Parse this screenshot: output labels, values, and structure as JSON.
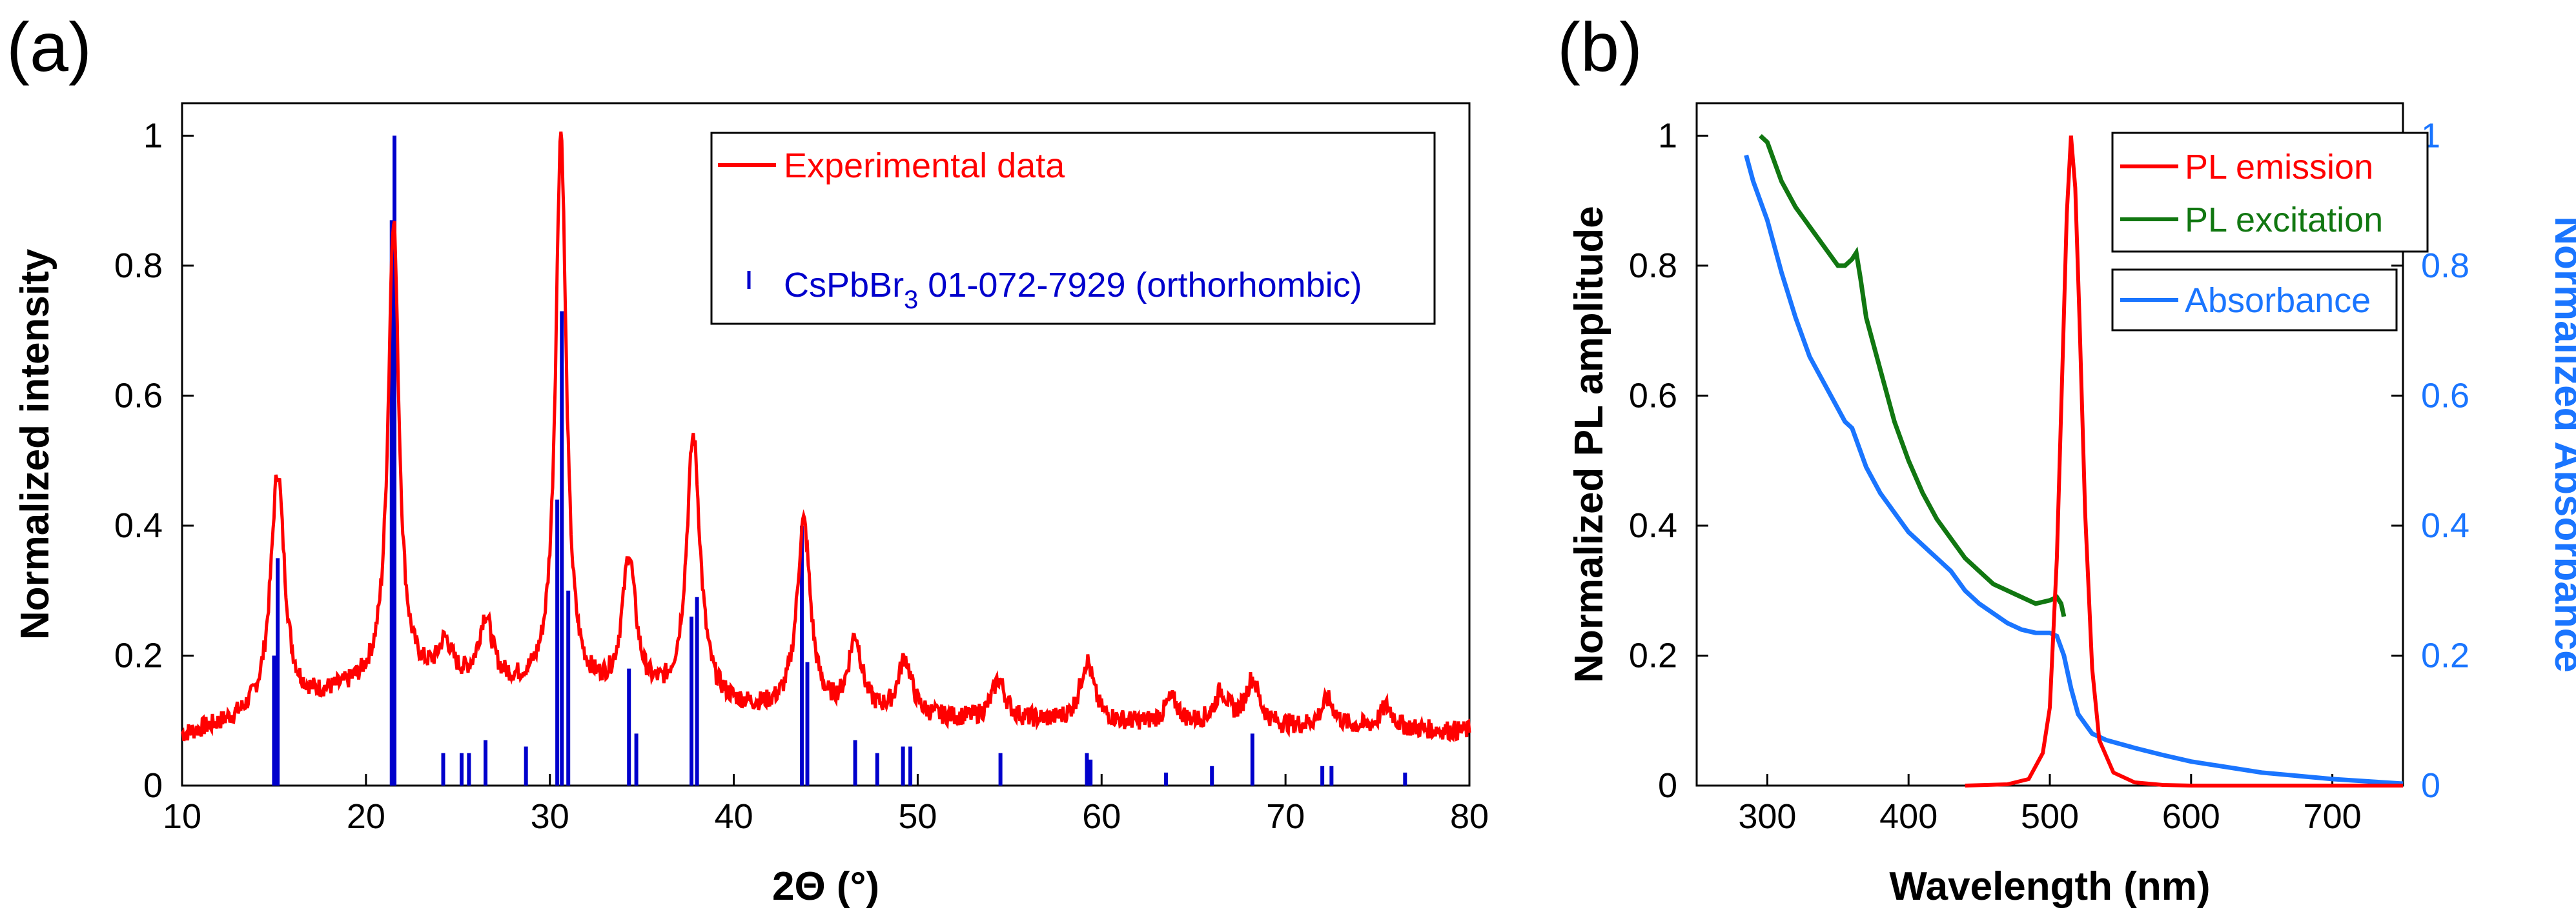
{
  "chart_data": [
    {
      "panel_label": "(a)",
      "type": "line",
      "title": "",
      "xlabel": "2Θ (°)",
      "ylabel": "Normalized intensity",
      "xlim": [
        10,
        80
      ],
      "ylim": [
        0,
        1.05
      ],
      "x_ticks": [
        10,
        20,
        30,
        40,
        50,
        60,
        70,
        80
      ],
      "y_ticks": [
        0,
        0.2,
        0.4,
        0.6,
        0.8,
        1
      ],
      "y_tick_labels": [
        "0",
        "0.2",
        "0.4",
        "0.6",
        "0.8",
        "1"
      ],
      "colors": {
        "experimental": "#ff0000",
        "reference": "#0000cc"
      },
      "legend": {
        "position": "top-right",
        "experimental_label": "Experimental data",
        "reference_label_main": "CsPbBr",
        "reference_label_sub": "3",
        "reference_label_rest": " 01-072-7929 (orthorhombic)"
      },
      "experimental_peaks": [
        {
          "x": 15.2,
          "y": 0.48
        },
        {
          "x": 21.5,
          "y": 0.87
        },
        {
          "x": 24.3,
          "y": 0.21
        },
        {
          "x": 26.5,
          "y": 0.25
        },
        {
          "x": 30.6,
          "y": 1.0
        },
        {
          "x": 34.3,
          "y": 0.34
        },
        {
          "x": 37.8,
          "y": 0.53
        },
        {
          "x": 43.8,
          "y": 0.4
        },
        {
          "x": 46.6,
          "y": 0.22
        },
        {
          "x": 49.3,
          "y": 0.19
        },
        {
          "x": 54.4,
          "y": 0.16
        },
        {
          "x": 59.2,
          "y": 0.19
        },
        {
          "x": 63.8,
          "y": 0.13
        },
        {
          "x": 66.5,
          "y": 0.14
        },
        {
          "x": 68.2,
          "y": 0.16
        },
        {
          "x": 72.3,
          "y": 0.13
        },
        {
          "x": 75.5,
          "y": 0.12
        }
      ],
      "reference_sticks": [
        {
          "x": 15.0,
          "y": 0.2
        },
        {
          "x": 15.2,
          "y": 0.35
        },
        {
          "x": 21.4,
          "y": 0.87
        },
        {
          "x": 21.55,
          "y": 1.0
        },
        {
          "x": 24.2,
          "y": 0.05
        },
        {
          "x": 25.2,
          "y": 0.05
        },
        {
          "x": 25.6,
          "y": 0.05
        },
        {
          "x": 26.5,
          "y": 0.07
        },
        {
          "x": 28.7,
          "y": 0.06
        },
        {
          "x": 30.4,
          "y": 0.44
        },
        {
          "x": 30.65,
          "y": 0.73
        },
        {
          "x": 31.0,
          "y": 0.3
        },
        {
          "x": 34.3,
          "y": 0.18
        },
        {
          "x": 34.7,
          "y": 0.08
        },
        {
          "x": 37.7,
          "y": 0.26
        },
        {
          "x": 38.0,
          "y": 0.29
        },
        {
          "x": 43.7,
          "y": 0.4
        },
        {
          "x": 44.0,
          "y": 0.19
        },
        {
          "x": 46.6,
          "y": 0.07
        },
        {
          "x": 47.8,
          "y": 0.05
        },
        {
          "x": 49.2,
          "y": 0.06
        },
        {
          "x": 49.6,
          "y": 0.06
        },
        {
          "x": 54.5,
          "y": 0.05
        },
        {
          "x": 59.2,
          "y": 0.05
        },
        {
          "x": 59.4,
          "y": 0.04
        },
        {
          "x": 63.5,
          "y": 0.02
        },
        {
          "x": 66.0,
          "y": 0.03
        },
        {
          "x": 68.2,
          "y": 0.08
        },
        {
          "x": 72.0,
          "y": 0.03
        },
        {
          "x": 72.5,
          "y": 0.03
        },
        {
          "x": 76.5,
          "y": 0.02
        }
      ]
    },
    {
      "panel_label": "(b)",
      "type": "line",
      "title": "",
      "xlabel": "Wavelength (nm)",
      "ylabel_left": "Normalized PL amplitude",
      "ylabel_right": "Normalized Absorbance",
      "xlim": [
        250,
        750
      ],
      "ylim": [
        0,
        1.05
      ],
      "x_ticks": [
        300,
        400,
        500,
        600,
        700
      ],
      "y_ticks": [
        0,
        0.2,
        0.4,
        0.6,
        0.8,
        1
      ],
      "y_tick_labels": [
        "0",
        "0.2",
        "0.4",
        "0.6",
        "0.8",
        "1"
      ],
      "colors": {
        "emission": "#ff0000",
        "excitation": "#117711",
        "absorbance": "#1a75ff"
      },
      "legend": {
        "position": "top-right",
        "emission_label": "PL emission",
        "excitation_label": "PL excitation",
        "absorbance_label": "Absorbance"
      },
      "series": [
        {
          "name": "PL emission",
          "x": [
            440,
            470,
            485,
            495,
            500,
            505,
            509,
            512,
            515,
            518,
            521,
            525,
            530,
            535,
            545,
            560,
            580,
            600,
            750
          ],
          "y": [
            0,
            0.002,
            0.01,
            0.05,
            0.12,
            0.35,
            0.65,
            0.88,
            1.0,
            0.92,
            0.72,
            0.42,
            0.18,
            0.07,
            0.02,
            0.005,
            0.001,
            0,
            0
          ]
        },
        {
          "name": "PL excitation",
          "x": [
            295,
            300,
            310,
            320,
            330,
            340,
            350,
            355,
            360,
            363,
            366,
            370,
            380,
            390,
            400,
            410,
            420,
            430,
            440,
            450,
            460,
            470,
            480,
            490,
            500,
            505,
            508,
            510
          ],
          "y": [
            1.0,
            0.99,
            0.93,
            0.89,
            0.86,
            0.83,
            0.8,
            0.8,
            0.81,
            0.82,
            0.78,
            0.72,
            0.64,
            0.56,
            0.5,
            0.45,
            0.41,
            0.38,
            0.35,
            0.33,
            0.31,
            0.3,
            0.29,
            0.28,
            0.285,
            0.29,
            0.28,
            0.26
          ]
        },
        {
          "name": "Absorbance",
          "x": [
            285,
            290,
            300,
            310,
            320,
            330,
            340,
            350,
            355,
            360,
            365,
            370,
            380,
            390,
            400,
            410,
            415,
            420,
            430,
            440,
            450,
            460,
            470,
            480,
            490,
            500,
            505,
            510,
            515,
            520,
            530,
            540,
            560,
            580,
            600,
            650,
            700,
            750
          ],
          "y": [
            0.97,
            0.93,
            0.87,
            0.79,
            0.72,
            0.66,
            0.62,
            0.58,
            0.56,
            0.55,
            0.52,
            0.49,
            0.45,
            0.42,
            0.39,
            0.37,
            0.36,
            0.35,
            0.33,
            0.3,
            0.28,
            0.265,
            0.25,
            0.24,
            0.235,
            0.235,
            0.23,
            0.2,
            0.15,
            0.11,
            0.08,
            0.07,
            0.058,
            0.047,
            0.037,
            0.02,
            0.01,
            0.003
          ]
        }
      ]
    }
  ]
}
